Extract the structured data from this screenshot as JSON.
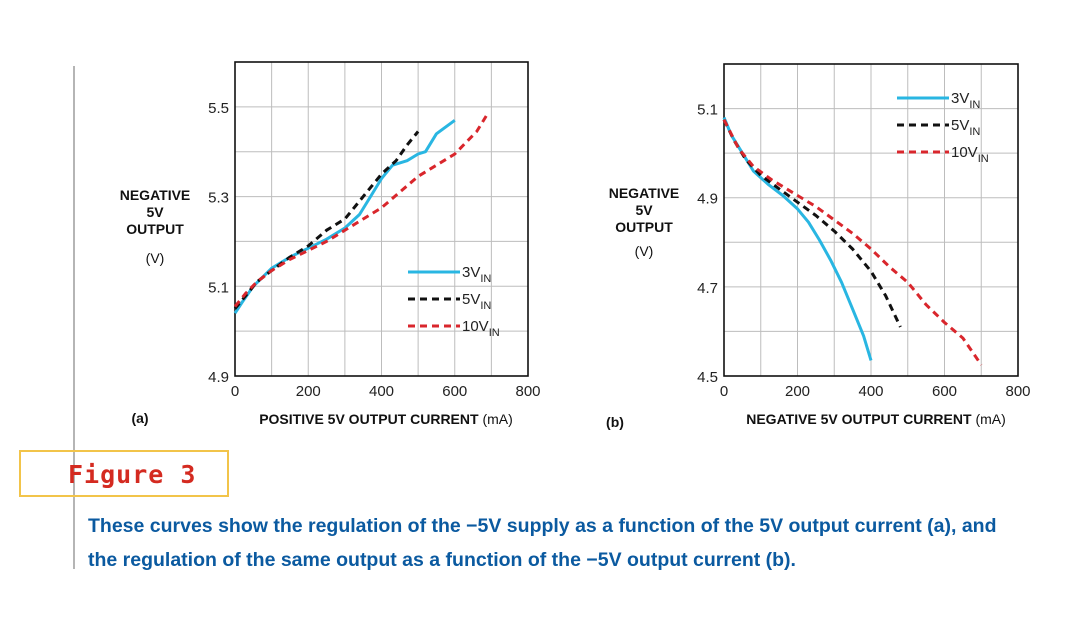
{
  "figure": {
    "label": "Figure 3",
    "caption_lines": [
      "These curves show the regulation of the −5V supply as a function of the 5V output current (a), and",
      "the regulation of the same output as a function of the −5V output current (b)."
    ]
  },
  "colors": {
    "series_3v": "#29b6e2",
    "series_5v": "#111111",
    "series_10v": "#d9262c",
    "grid": "#bdbdbd",
    "axis": "#111111",
    "caption": "#0b5aa0",
    "figure_label": "#d42a20",
    "figure_box": "#f2c44a"
  },
  "chart_data": [
    {
      "type": "line",
      "panel_label": "(a)",
      "ylabel_lines": [
        "NEGATIVE",
        "5V",
        "OUTPUT"
      ],
      "ylabel_unit": "(V)",
      "xlabel": "POSITIVE 5V OUTPUT CURRENT",
      "xlabel_unit": "(mA)",
      "xlim": [
        0,
        800
      ],
      "ylim": [
        4.9,
        5.6
      ],
      "xticks": [
        0,
        200,
        400,
        600,
        800
      ],
      "yticks": [
        4.9,
        5.1,
        5.3,
        5.5
      ],
      "ytick_labels": [
        "4.9",
        "5.1",
        "5.3",
        "5.5"
      ],
      "grid": true,
      "legend_position": "lower-right",
      "series": [
        {
          "name": "3V",
          "name_sub": "IN",
          "style": "solid",
          "x": [
            0,
            20,
            50,
            100,
            150,
            200,
            250,
            300,
            340,
            370,
            400,
            430,
            470,
            500,
            520,
            550,
            600
          ],
          "y": [
            5.04,
            5.065,
            5.1,
            5.14,
            5.165,
            5.185,
            5.205,
            5.23,
            5.26,
            5.3,
            5.34,
            5.37,
            5.38,
            5.395,
            5.4,
            5.44,
            5.47
          ]
        },
        {
          "name": "5V",
          "name_sub": "IN",
          "style": "dashed",
          "x": [
            0,
            30,
            60,
            100,
            150,
            200,
            250,
            300,
            340,
            370,
            400,
            440,
            470,
            500
          ],
          "y": [
            5.05,
            5.08,
            5.11,
            5.135,
            5.165,
            5.19,
            5.225,
            5.25,
            5.29,
            5.32,
            5.35,
            5.38,
            5.415,
            5.445
          ]
        },
        {
          "name": "10V",
          "name_sub": "IN",
          "style": "dashed",
          "x": [
            0,
            30,
            60,
            100,
            150,
            200,
            250,
            300,
            350,
            400,
            450,
            500,
            550,
            600,
            630,
            660,
            690
          ],
          "y": [
            5.055,
            5.085,
            5.11,
            5.135,
            5.16,
            5.18,
            5.2,
            5.225,
            5.25,
            5.275,
            5.31,
            5.345,
            5.37,
            5.395,
            5.42,
            5.445,
            5.485
          ]
        }
      ]
    },
    {
      "type": "line",
      "panel_label": "(b)",
      "ylabel_lines": [
        "NEGATIVE",
        "5V",
        "OUTPUT"
      ],
      "ylabel_unit": "(V)",
      "xlabel": "NEGATIVE 5V OUTPUT CURRENT",
      "xlabel_unit": "(mA)",
      "xlim": [
        0,
        800
      ],
      "ylim": [
        4.5,
        5.2
      ],
      "xticks": [
        0,
        200,
        400,
        600,
        800
      ],
      "yticks": [
        4.5,
        4.7,
        4.9,
        5.1
      ],
      "ytick_labels": [
        "4.5",
        "4.7",
        "4.9",
        "5.1"
      ],
      "grid": true,
      "legend_position": "top-right",
      "series": [
        {
          "name": "3V",
          "name_sub": "IN",
          "style": "solid",
          "x": [
            0,
            20,
            50,
            80,
            120,
            160,
            200,
            230,
            260,
            290,
            320,
            350,
            380,
            400
          ],
          "y": [
            5.08,
            5.04,
            5.0,
            4.96,
            4.93,
            4.905,
            4.875,
            4.845,
            4.805,
            4.76,
            4.71,
            4.65,
            4.59,
            4.535
          ]
        },
        {
          "name": "5V",
          "name_sub": "IN",
          "style": "dashed",
          "x": [
            0,
            30,
            60,
            100,
            150,
            200,
            250,
            300,
            350,
            400,
            440,
            480
          ],
          "y": [
            5.075,
            5.025,
            4.985,
            4.95,
            4.92,
            4.89,
            4.86,
            4.825,
            4.785,
            4.735,
            4.68,
            4.61
          ]
        },
        {
          "name": "10V",
          "name_sub": "IN",
          "style": "dashed",
          "x": [
            0,
            40,
            80,
            130,
            200,
            250,
            300,
            350,
            400,
            450,
            500,
            550,
            600,
            650,
            700
          ],
          "y": [
            5.075,
            5.01,
            4.97,
            4.94,
            4.905,
            4.88,
            4.85,
            4.82,
            4.785,
            4.745,
            4.71,
            4.66,
            4.62,
            4.585,
            4.525
          ]
        }
      ]
    }
  ]
}
